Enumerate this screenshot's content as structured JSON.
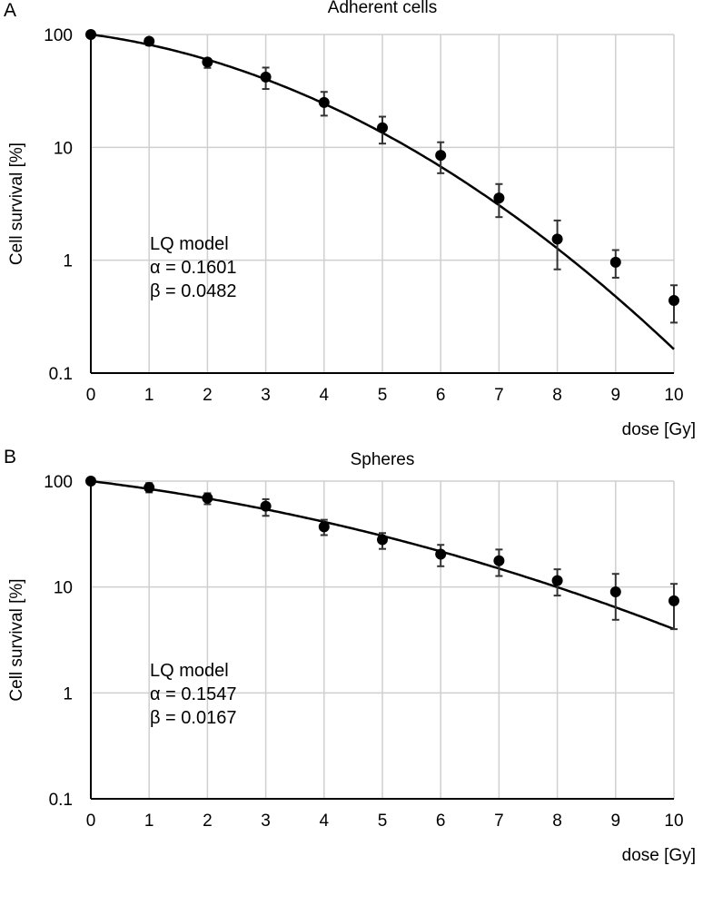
{
  "chart_data": [
    {
      "type": "scatter",
      "panel_label": "A",
      "title": "Adherent cells",
      "xlabel": "dose [Gy]",
      "ylabel": "Cell survival [%]",
      "yscale": "log",
      "ylim": [
        0.1,
        100
      ],
      "xlim": [
        0,
        10
      ],
      "grid": true,
      "x_ticks": [
        "0",
        "1",
        "2",
        "3",
        "4",
        "5",
        "6",
        "7",
        "8",
        "9",
        "10"
      ],
      "y_ticks": [
        "100",
        "10",
        "1",
        "0.1"
      ],
      "x": [
        0,
        1,
        2,
        3,
        4,
        5,
        6,
        7,
        8,
        9,
        10
      ],
      "values": [
        100,
        87,
        57,
        42,
        25,
        14.9,
        8.5,
        3.56,
        1.54,
        0.96,
        0.44
      ],
      "err_high": [
        100,
        92.3,
        60.8,
        50.9,
        31.0,
        18.7,
        11.1,
        4.73,
        2.25,
        1.23,
        0.6
      ],
      "err_low": [
        100,
        80.2,
        50.6,
        32.9,
        19.1,
        10.8,
        5.9,
        2.41,
        0.83,
        0.7,
        0.28
      ],
      "fit": {
        "model": "LQ",
        "alpha": 0.1601,
        "beta": 0.0482
      },
      "annotation": [
        "LQ model",
        "α = 0.1601",
        "β = 0.0482"
      ]
    },
    {
      "type": "scatter",
      "panel_label": "B",
      "title": "Spheres",
      "xlabel": "dose [Gy]",
      "ylabel": "Cell survival [%]",
      "yscale": "log",
      "ylim": [
        0.1,
        100
      ],
      "xlim": [
        0,
        10
      ],
      "grid": true,
      "x_ticks": [
        "0",
        "1",
        "2",
        "3",
        "4",
        "5",
        "6",
        "7",
        "8",
        "9",
        "10"
      ],
      "y_ticks": [
        "100",
        "10",
        "1",
        "0.1"
      ],
      "x": [
        0,
        1,
        2,
        3,
        4,
        5,
        6,
        7,
        8,
        9,
        10
      ],
      "values": [
        100,
        87,
        69,
        58,
        37,
        28,
        20.4,
        17.7,
        11.5,
        9.0,
        7.4
      ],
      "err_high": [
        100,
        95.8,
        76.8,
        67.5,
        43.1,
        32.3,
        25.0,
        22.6,
        14.7,
        13.3,
        10.7
      ],
      "err_low": [
        100,
        78.2,
        60.5,
        47.0,
        30.9,
        22.9,
        15.7,
        12.7,
        8.3,
        4.9,
        4.0
      ],
      "fit": {
        "model": "LQ",
        "alpha": 0.1547,
        "beta": 0.0167
      },
      "annotation": [
        "LQ model",
        "α = 0.1547",
        "β = 0.0167"
      ]
    }
  ]
}
